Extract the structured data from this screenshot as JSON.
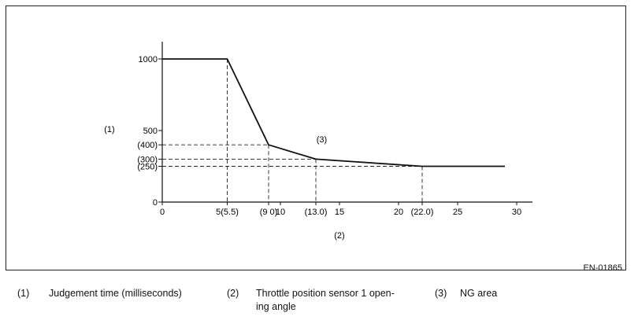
{
  "chart_data": {
    "type": "line",
    "xlabel": "(2)",
    "ylabel": "(1)",
    "xlim": [
      0,
      30
    ],
    "ylim": [
      0,
      1000
    ],
    "y_ticks": [
      {
        "value": 0,
        "label": "0"
      },
      {
        "value": 250,
        "label": "(250)"
      },
      {
        "value": 300,
        "label": "(300)"
      },
      {
        "value": 400,
        "label": "(400)"
      },
      {
        "value": 500,
        "label": "500"
      },
      {
        "value": 1000,
        "label": "1000"
      }
    ],
    "x_ticks": [
      {
        "value": 0,
        "label": "0"
      },
      {
        "value": 5.5,
        "label": "5(5.5)"
      },
      {
        "value": 9.0,
        "label": "(9 0)"
      },
      {
        "value": 10,
        "label": "10"
      },
      {
        "value": 13.0,
        "label": "(13.0)"
      },
      {
        "value": 15,
        "label": "15"
      },
      {
        "value": 20,
        "label": "20"
      },
      {
        "value": 22.0,
        "label": "(22.0)"
      },
      {
        "value": 25,
        "label": "25"
      },
      {
        "value": 30,
        "label": "30"
      }
    ],
    "series": [
      {
        "x": [
          0,
          5.5,
          9.0,
          13.0,
          22.0,
          29.0
        ],
        "y": [
          1000,
          1000,
          400,
          300,
          250,
          250
        ]
      }
    ],
    "guides": [
      {
        "x": 5.5,
        "y": 1000
      },
      {
        "x": 9.0,
        "y": 400
      },
      {
        "x": 13.0,
        "y": 300
      },
      {
        "x": 22.0,
        "y": 250
      }
    ],
    "annotations": [
      {
        "text": "(3)",
        "x": 13.5,
        "y": 440
      }
    ],
    "grid": false
  },
  "figure_code": "EN-01865",
  "legend": {
    "item1_num": "(1)",
    "item1_text": "Judgement time (milliseconds)",
    "item2_num": "(2)",
    "item2_line1": "Throttle position sensor 1 open-",
    "item2_line2": "ing angle",
    "item3_num": "(3)",
    "item3_text": "NG area"
  }
}
